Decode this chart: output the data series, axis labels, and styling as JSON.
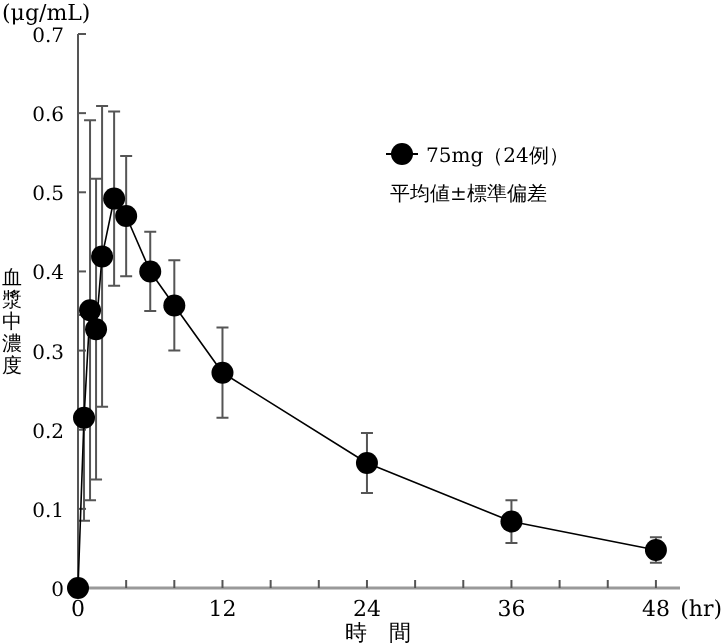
{
  "chart_data": {
    "type": "line",
    "xlabel": "時　間",
    "ylabel": "血漿中濃度",
    "annotations": [
      "(μg/mL)",
      "(hr)",
      "平均値±標準偏差"
    ],
    "x": [
      0,
      0.5,
      1,
      1.5,
      2,
      3,
      4,
      6,
      8,
      12,
      24,
      36,
      48
    ],
    "series": [
      {
        "name": "75mg（24例）",
        "color": "#000000",
        "values": [
          0,
          0.215,
          0.351,
          0.327,
          0.419,
          0.492,
          0.47,
          0.4,
          0.357,
          0.272,
          0.158,
          0.084,
          0.048
        ],
        "errors": [
          null,
          0.13,
          0.24,
          0.19,
          0.19,
          0.11,
          0.076,
          0.05,
          0.057,
          0.057,
          0.038,
          0.027,
          0.016
        ]
      }
    ],
    "xlim": [
      0,
      50
    ],
    "ylim": [
      0,
      0.7
    ],
    "xticks": [
      0,
      {
        "value": 4,
        "label": null
      },
      {
        "value": 8,
        "label": null
      },
      12,
      {
        "value": 16,
        "label": null
      },
      {
        "value": 20,
        "label": null
      },
      24,
      {
        "value": 28,
        "label": null
      },
      {
        "value": 32,
        "label": null
      },
      36,
      {
        "value": 40,
        "label": null
      },
      {
        "value": 44,
        "label": null
      },
      48
    ],
    "yticks": [
      0,
      0.1,
      0.2,
      0.3,
      0.4,
      0.5,
      0.6,
      0.7
    ],
    "legend": "top right",
    "marker": "circle"
  }
}
